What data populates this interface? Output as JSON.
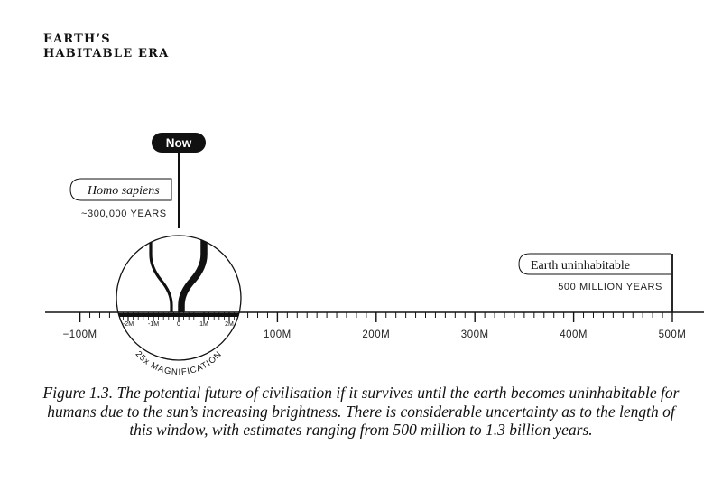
{
  "title": {
    "line1": "EARTH’S",
    "line2": "HABITABLE ERA"
  },
  "timeline": {
    "ticks": [
      {
        "label": "−100M",
        "value": -100
      },
      {
        "label": "100M",
        "value": 100
      },
      {
        "label": "200M",
        "value": 200
      },
      {
        "label": "300M",
        "value": 300
      },
      {
        "label": "400M",
        "value": 400
      },
      {
        "label": "500M",
        "value": 500
      }
    ],
    "unit": "million years"
  },
  "now_label": "Now",
  "homo_sapiens": {
    "name": "Homo sapiens",
    "duration": "~300,000 YEARS"
  },
  "earth_end": {
    "name": "Earth uninhabitable",
    "duration": "500 MILLION YEARS"
  },
  "magnifier": {
    "label": "25x MAGNIFICATION",
    "ticks": [
      "-2M",
      "-1M",
      "0",
      "1M",
      "2M"
    ]
  },
  "caption": "Figure 1.3. The potential future of civilisation if it survives until the earth becomes uninhabitable for humans due to the sun’s increasing brightness. There is considerable uncertainty as to the length of this window, with estimates ranging from 500 million to 1.3 billion years."
}
